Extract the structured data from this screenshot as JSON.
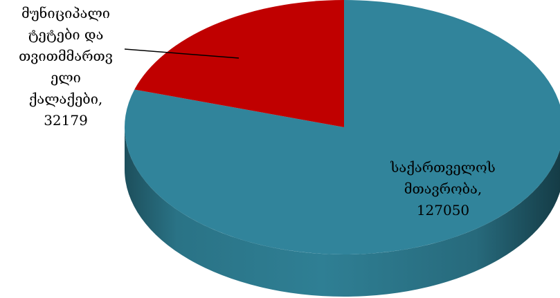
{
  "chart_data": {
    "type": "pie",
    "title": "",
    "categories": [
      "საქართველოს მთავრობა",
      "მუნიციპალი ტეტები და თვითმმართველი ქალაქები"
    ],
    "values": [
      127050,
      32179
    ],
    "colors": [
      "#31849B",
      "#C00000"
    ],
    "legend": "none",
    "style": "3d",
    "data_labels": [
      {
        "lines": [
          "საქართველოს",
          "მთავრობა,",
          "127050"
        ]
      },
      {
        "lines": [
          "მუნიციპალი",
          "ტეტები და",
          "თვითმმართვ",
          "ელი",
          "ქალაქები,",
          "32179"
        ]
      }
    ]
  }
}
